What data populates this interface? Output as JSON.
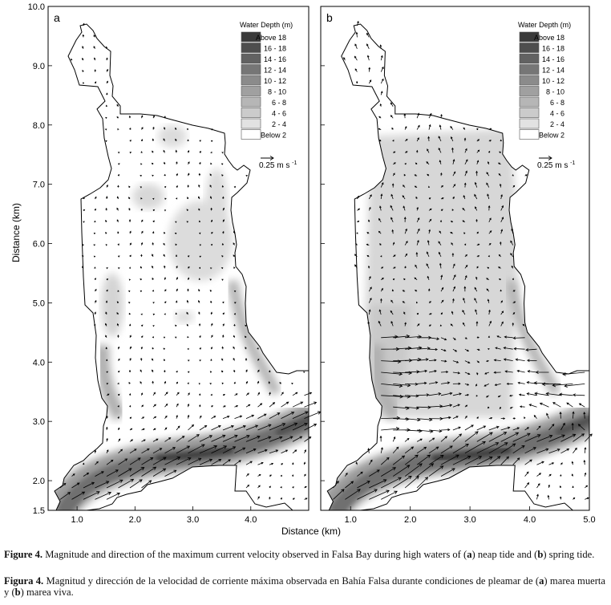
{
  "panels": [
    {
      "id": "a",
      "letter": "a"
    },
    {
      "id": "b",
      "letter": "b"
    }
  ],
  "yaxis": {
    "label": "Distance (km)",
    "ticks": [
      "10.0",
      "9.0",
      "8.0",
      "7.0",
      "6.0",
      "5.0",
      "4.0",
      "3.0",
      "2.0",
      "1.5"
    ],
    "values": [
      10,
      9,
      8,
      7,
      6,
      5,
      4,
      3,
      2,
      1.5
    ]
  },
  "xaxis": {
    "label": "Distance (km)",
    "ticks": [
      "1.0",
      "2.0",
      "3.0",
      "4.0",
      "5.0"
    ],
    "values": [
      1,
      2,
      3,
      4,
      5
    ]
  },
  "legend": {
    "title": "Water Depth (m)",
    "items": [
      {
        "label": "Above 18",
        "color": "#3a3a3a"
      },
      {
        "label": "16 - 18",
        "color": "#4e4e4e"
      },
      {
        "label": "14 - 16",
        "color": "#626262"
      },
      {
        "label": "12 - 14",
        "color": "#767676"
      },
      {
        "label": "10 - 12",
        "color": "#8b8b8b"
      },
      {
        "label": "8 - 10",
        "color": "#a0a0a0"
      },
      {
        "label": "6 - 8",
        "color": "#b6b6b6"
      },
      {
        "label": "4 - 6",
        "color": "#cbcbcb"
      },
      {
        "label": "2 - 4",
        "color": "#e2e2e2"
      },
      {
        "label": "Below  2",
        "color": "#ffffff"
      }
    ]
  },
  "scale_label": "0.25 m s",
  "scale_sup": "-1",
  "caption_en": {
    "label": "Figure 4.",
    "t1": " Magnitude and direction of the maximum current velocity observed in Falsa Bay during high waters of (",
    "b1": "a",
    "t2": ") neap tide and (",
    "b2": "b",
    "t3": ") spring tide."
  },
  "caption_es": {
    "label": "Figura 4.",
    "t1": " Magnitud y dirección de la velocidad de corriente máxima observada en Bahía Falsa durante condiciones de pleamar de (",
    "b1": "a",
    "t2": ") marea muerta y (",
    "b2": "b",
    "t3": ") marea viva."
  }
}
